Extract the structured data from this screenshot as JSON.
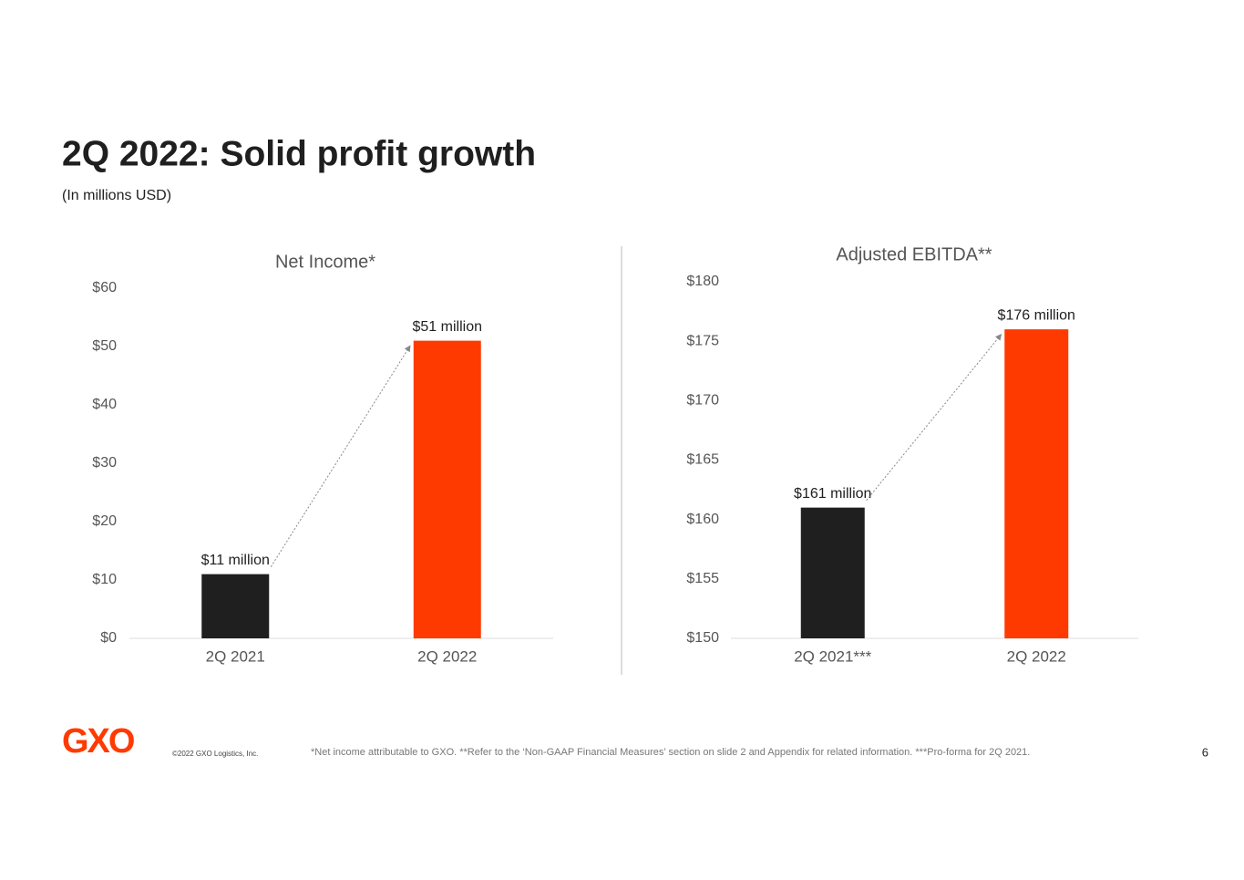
{
  "title": "2Q 2022: Solid profit growth",
  "subtitle": "(In millions USD)",
  "chart_data": [
    {
      "type": "bar",
      "title": "Net Income*",
      "categories": [
        "2Q 2021",
        "2Q 2022"
      ],
      "values": [
        11,
        51
      ],
      "value_labels": [
        "$11 million",
        "$51 million"
      ],
      "colors": [
        "#1f1f1f",
        "#ff3a00"
      ],
      "ylim": [
        0,
        60
      ],
      "yticks": [
        {
          "value": 0,
          "label": "$0"
        },
        {
          "value": 10,
          "label": "$10"
        },
        {
          "value": 20,
          "label": "$20"
        },
        {
          "value": 30,
          "label": "$30"
        },
        {
          "value": 40,
          "label": "$40"
        },
        {
          "value": 50,
          "label": "$50"
        },
        {
          "value": 60,
          "label": "$60"
        }
      ],
      "grid": false
    },
    {
      "type": "bar",
      "title": "Adjusted EBITDA**",
      "categories": [
        "2Q 2021***",
        "2Q 2022"
      ],
      "values": [
        161,
        176
      ],
      "value_labels": [
        "$161 million",
        "$176 million"
      ],
      "colors": [
        "#1f1f1f",
        "#ff3a00"
      ],
      "ylim": [
        150,
        180
      ],
      "yticks": [
        {
          "value": 150,
          "label": "$150"
        },
        {
          "value": 155,
          "label": "$155"
        },
        {
          "value": 160,
          "label": "$160"
        },
        {
          "value": 165,
          "label": "$165"
        },
        {
          "value": 170,
          "label": "$170"
        },
        {
          "value": 175,
          "label": "$175"
        },
        {
          "value": 180,
          "label": "$180"
        }
      ],
      "grid": false
    }
  ],
  "footer": {
    "logo": "GXO",
    "copyright": "©2022 GXO Logistics, Inc.",
    "note": "*Net income attributable to GXO.  **Refer to the ‘Non-GAAP Financial Measures’ section on slide 2 and Appendix for related information.  ***Pro-forma for 2Q 2021.",
    "page": "6"
  }
}
